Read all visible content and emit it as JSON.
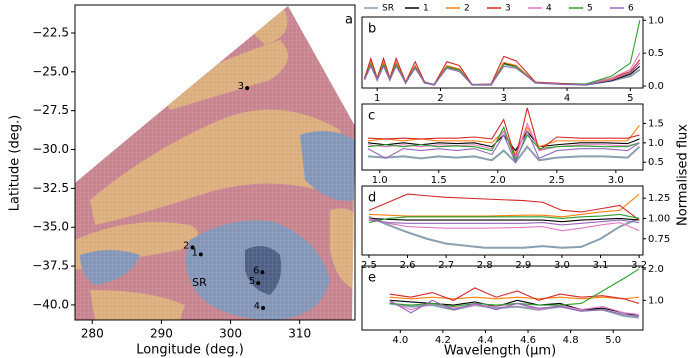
{
  "figure": {
    "xlabel": "Wavelength (μm)",
    "ylabel": "Normalised flux"
  },
  "chart_data": [
    {
      "type": "scatter",
      "panel_label": "a",
      "xlabel": "Longitude (deg.)",
      "ylabel": "Latitude (deg.)",
      "xlim": [
        277.5,
        318
      ],
      "ylim": [
        -40.97,
        -20.7
      ],
      "xticks": [
        280,
        290,
        300,
        310
      ],
      "yticks": [
        {
          "value": -22.5,
          "label": "−22.5"
        },
        {
          "value": -25,
          "label": "−25.0"
        },
        {
          "value": -27.5,
          "label": "−27.5"
        },
        {
          "value": -30,
          "label": "−30.0"
        },
        {
          "value": -32.5,
          "label": "−32.5"
        },
        {
          "value": -35,
          "label": "−35.0"
        },
        {
          "value": -37.5,
          "label": "−37.5"
        },
        {
          "value": -40,
          "label": "−40.0"
        }
      ],
      "point_labels": [
        "1",
        "2",
        "3",
        "4",
        "5",
        "6"
      ],
      "x": [
        295.7,
        294.5,
        302.4,
        304.7,
        304.0,
        304.6
      ],
      "y": [
        -36.75,
        -36.3,
        -26.05,
        -40.2,
        -38.6,
        -37.9
      ],
      "annotations": [
        {
          "text": "SR",
          "x": 295.5,
          "y": -38.6
        }
      ]
    },
    {
      "type": "line",
      "panel_label": "b",
      "xlim": [
        0.76,
        5.2
      ],
      "ylim": [
        -0.03,
        1.05
      ],
      "xticks": [
        1,
        2,
        3,
        4,
        5
      ],
      "yticks": [
        {
          "value": 0,
          "label": "0.0"
        },
        0.5,
        {
          "value": 1,
          "label": "1.0"
        }
      ],
      "x": [
        0.8,
        0.9,
        1.0,
        1.1,
        1.2,
        1.3,
        1.45,
        1.6,
        1.75,
        1.9,
        2.1,
        2.3,
        2.5,
        2.8,
        3.0,
        3.2,
        3.5,
        3.9,
        4.3,
        4.7,
        5.0,
        5.15
      ],
      "series": [
        {
          "name": "SR",
          "color": "#8a9fb0",
          "values": [
            0.1,
            0.35,
            0.1,
            0.35,
            0.1,
            0.35,
            0.05,
            0.3,
            0.05,
            0.02,
            0.3,
            0.25,
            0.02,
            0.02,
            0.35,
            0.3,
            0.05,
            0.03,
            0.02,
            0.08,
            0.15,
            0.25
          ]
        },
        {
          "name": "1",
          "color": "#000000",
          "values": [
            0.1,
            0.34,
            0.1,
            0.34,
            0.1,
            0.34,
            0.05,
            0.3,
            0.05,
            0.02,
            0.29,
            0.25,
            0.02,
            0.02,
            0.34,
            0.3,
            0.05,
            0.03,
            0.02,
            0.08,
            0.18,
            0.3
          ]
        },
        {
          "name": "2",
          "color": "#ff7f0e",
          "values": [
            0.1,
            0.36,
            0.1,
            0.36,
            0.1,
            0.36,
            0.05,
            0.31,
            0.05,
            0.02,
            0.31,
            0.26,
            0.02,
            0.02,
            0.36,
            0.31,
            0.05,
            0.03,
            0.03,
            0.1,
            0.2,
            0.35
          ]
        },
        {
          "name": "3",
          "color": "#d62728",
          "values": [
            0.12,
            0.42,
            0.12,
            0.42,
            0.12,
            0.42,
            0.06,
            0.37,
            0.06,
            0.02,
            0.37,
            0.31,
            0.02,
            0.03,
            0.45,
            0.38,
            0.06,
            0.04,
            0.03,
            0.12,
            0.22,
            0.4
          ]
        },
        {
          "name": "4",
          "color": "#e377c2",
          "values": [
            0.1,
            0.33,
            0.1,
            0.33,
            0.1,
            0.33,
            0.05,
            0.29,
            0.05,
            0.02,
            0.28,
            0.24,
            0.02,
            0.02,
            0.33,
            0.29,
            0.05,
            0.03,
            0.03,
            0.12,
            0.25,
            0.5
          ]
        },
        {
          "name": "5",
          "color": "#2ca02c",
          "values": [
            0.1,
            0.33,
            0.1,
            0.33,
            0.1,
            0.33,
            0.05,
            0.29,
            0.05,
            0.02,
            0.29,
            0.24,
            0.02,
            0.02,
            0.33,
            0.29,
            0.05,
            0.03,
            0.03,
            0.15,
            0.35,
            1.0
          ]
        },
        {
          "name": "6",
          "color": "#9467bd",
          "values": [
            0.1,
            0.3,
            0.09,
            0.3,
            0.09,
            0.3,
            0.05,
            0.27,
            0.05,
            0.02,
            0.27,
            0.22,
            0.02,
            0.02,
            0.3,
            0.27,
            0.05,
            0.03,
            0.02,
            0.09,
            0.2,
            0.35
          ]
        }
      ]
    },
    {
      "type": "line",
      "panel_label": "c",
      "xlim": [
        0.85,
        3.23
      ],
      "ylim": [
        0.3,
        2.0
      ],
      "xticks": [
        {
          "value": 1,
          "label": "1.0"
        },
        1.5,
        {
          "value": 2,
          "label": "2.0"
        },
        2.5,
        {
          "value": 3,
          "label": "3.0"
        }
      ],
      "yticks": [
        0.5,
        {
          "value": 1,
          "label": "1.0"
        },
        1.5
      ],
      "x": [
        0.9,
        1.05,
        1.2,
        1.35,
        1.5,
        1.65,
        1.8,
        1.95,
        2.05,
        2.15,
        2.25,
        2.35,
        2.5,
        2.7,
        2.9,
        3.1,
        3.2
      ],
      "series": [
        {
          "color": "#8a9fb0",
          "values": [
            0.65,
            0.62,
            0.65,
            0.6,
            0.65,
            0.62,
            0.65,
            0.55,
            0.8,
            0.5,
            0.9,
            0.55,
            0.62,
            0.65,
            0.65,
            0.62,
            0.9
          ]
        },
        {
          "color": "#000000",
          "values": [
            1.0,
            0.95,
            1.0,
            0.95,
            1.0,
            0.98,
            1.0,
            0.9,
            1.2,
            0.8,
            1.3,
            0.9,
            0.95,
            1.0,
            1.0,
            0.98,
            1.1
          ]
        },
        {
          "color": "#ff7f0e",
          "values": [
            1.05,
            1.1,
            1.05,
            1.1,
            1.05,
            1.05,
            1.05,
            1.0,
            1.3,
            0.7,
            1.4,
            0.9,
            1.05,
            1.05,
            1.05,
            1.05,
            1.45
          ]
        },
        {
          "color": "#d62728",
          "values": [
            1.12,
            1.1,
            1.12,
            1.1,
            1.12,
            1.12,
            1.15,
            1.1,
            1.6,
            0.6,
            1.9,
            0.8,
            1.15,
            1.12,
            1.12,
            1.12,
            1.2
          ]
        },
        {
          "color": "#e377c2",
          "values": [
            0.95,
            0.9,
            0.95,
            0.9,
            0.95,
            0.93,
            0.95,
            0.85,
            1.3,
            0.6,
            1.5,
            0.8,
            0.9,
            0.95,
            0.95,
            0.92,
            1.0
          ]
        },
        {
          "color": "#2ca02c",
          "values": [
            0.9,
            0.95,
            0.9,
            0.95,
            0.9,
            0.92,
            0.9,
            0.8,
            1.4,
            0.55,
            1.2,
            0.85,
            0.9,
            0.92,
            0.9,
            0.9,
            1.0
          ]
        },
        {
          "color": "#9467bd",
          "values": [
            0.85,
            0.6,
            0.85,
            0.8,
            0.85,
            0.8,
            0.85,
            0.7,
            1.2,
            0.5,
            1.3,
            0.6,
            0.8,
            0.85,
            0.85,
            0.8,
            1.0
          ]
        }
      ]
    },
    {
      "type": "line",
      "panel_label": "d",
      "xlim": [
        2.482,
        3.21
      ],
      "ylim": [
        0.55,
        1.4
      ],
      "xticks": [
        2.5,
        2.6,
        2.7,
        2.8,
        2.9,
        {
          "value": 3,
          "label": "3.0"
        },
        3.1,
        3.2
      ],
      "yticks": [
        0.75,
        {
          "value": 1,
          "label": "1.00"
        },
        1.25
      ],
      "x": [
        2.5,
        2.55,
        2.6,
        2.65,
        2.7,
        2.8,
        2.9,
        2.95,
        3.0,
        3.05,
        3.1,
        3.15,
        3.2
      ],
      "series": [
        {
          "color": "#8a9fb0",
          "values": [
            1.02,
            0.92,
            0.83,
            0.75,
            0.69,
            0.64,
            0.64,
            0.66,
            0.64,
            0.65,
            0.75,
            0.9,
            1.0
          ]
        },
        {
          "color": "#000000",
          "values": [
            1.0,
            0.99,
            0.98,
            0.98,
            0.98,
            0.98,
            0.98,
            0.98,
            0.96,
            0.98,
            0.99,
            1.0,
            0.98
          ]
        },
        {
          "color": "#ff7f0e",
          "values": [
            1.05,
            1.04,
            1.03,
            1.03,
            1.03,
            1.03,
            1.04,
            1.04,
            1.02,
            1.05,
            1.08,
            1.1,
            1.3
          ]
        },
        {
          "color": "#d62728",
          "values": [
            1.1,
            1.2,
            1.3,
            1.28,
            1.26,
            1.24,
            1.22,
            1.2,
            1.1,
            1.08,
            1.12,
            1.16,
            0.98
          ]
        },
        {
          "color": "#e377c2",
          "values": [
            1.0,
            0.94,
            0.9,
            0.89,
            0.88,
            0.88,
            0.89,
            0.9,
            0.85,
            0.88,
            0.92,
            0.95,
            0.85
          ]
        },
        {
          "color": "#2ca02c",
          "values": [
            0.95,
            1.0,
            1.02,
            1.02,
            1.02,
            1.02,
            1.02,
            1.02,
            1.0,
            1.02,
            1.03,
            1.05,
            1.0
          ]
        },
        {
          "color": "#9467bd",
          "values": [
            0.98,
            0.95,
            0.94,
            0.94,
            0.94,
            0.94,
            0.94,
            0.95,
            0.92,
            0.94,
            0.96,
            0.98,
            0.95
          ]
        }
      ]
    },
    {
      "type": "line",
      "panel_label": "e",
      "xlim": [
        3.82,
        5.14
      ],
      "ylim": [
        0.05,
        2.1
      ],
      "xticks": [
        {
          "value": 4,
          "label": "4.0"
        },
        4.2,
        4.4,
        4.6,
        4.8,
        {
          "value": 5,
          "label": "5.0"
        }
      ],
      "yticks": [
        {
          "value": 1,
          "label": "1.0"
        },
        {
          "value": 2,
          "label": "2.0"
        }
      ],
      "x": [
        3.95,
        4.05,
        4.15,
        4.25,
        4.35,
        4.45,
        4.55,
        4.65,
        4.75,
        4.85,
        4.95,
        5.05,
        5.12
      ],
      "series": [
        {
          "color": "#8a9fb0",
          "values": [
            0.9,
            0.8,
            0.85,
            0.7,
            0.85,
            0.75,
            0.8,
            0.7,
            0.8,
            0.7,
            0.7,
            0.5,
            0.45
          ]
        },
        {
          "color": "#000000",
          "values": [
            1.0,
            0.95,
            0.9,
            0.85,
            0.95,
            0.8,
            1.0,
            0.85,
            0.9,
            0.7,
            0.75,
            0.6,
            0.5
          ]
        },
        {
          "color": "#ff7f0e",
          "values": [
            1.1,
            1.05,
            1.1,
            1.05,
            1.1,
            1.05,
            1.1,
            1.05,
            1.1,
            1.05,
            1.1,
            1.05,
            1.1
          ]
        },
        {
          "color": "#d62728",
          "values": [
            1.2,
            1.1,
            1.25,
            1.0,
            1.4,
            1.1,
            1.3,
            1.0,
            1.2,
            1.1,
            1.15,
            1.05,
            0.9
          ]
        },
        {
          "color": "#e377c2",
          "values": [
            0.95,
            0.7,
            0.9,
            0.75,
            0.85,
            0.8,
            0.9,
            0.7,
            0.85,
            0.7,
            0.8,
            0.6,
            0.55
          ]
        },
        {
          "color": "#2ca02c",
          "values": [
            0.9,
            0.85,
            0.9,
            0.8,
            0.9,
            0.85,
            0.9,
            0.85,
            0.85,
            0.9,
            1.3,
            1.7,
            2.0
          ]
        },
        {
          "color": "#9467bd",
          "values": [
            1.0,
            0.6,
            1.0,
            0.7,
            0.9,
            0.7,
            0.9,
            0.75,
            0.8,
            0.65,
            0.7,
            0.55,
            0.5
          ]
        }
      ]
    }
  ]
}
